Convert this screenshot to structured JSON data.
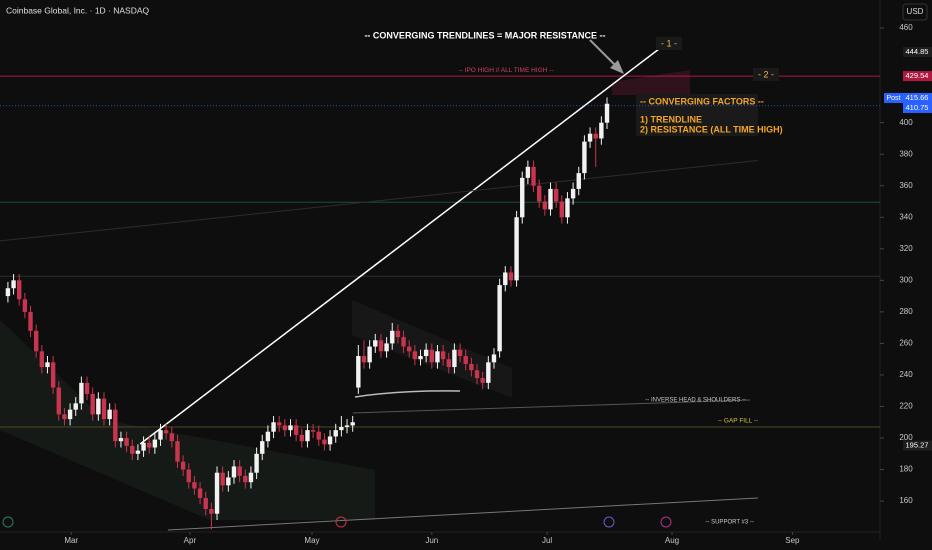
{
  "chart_data": {
    "type": "candlestick",
    "title": "Coinbase Global, Inc. · 1D · NASDAQ",
    "currency": "USD",
    "categories": [
      null,
      null,
      null,
      null,
      null,
      null,
      null,
      null,
      null,
      null,
      null,
      null,
      null,
      null,
      null,
      null,
      null,
      null,
      null,
      null,
      null,
      null,
      null,
      null,
      null,
      null,
      null,
      null,
      null,
      null,
      null,
      null,
      null,
      null,
      null,
      null,
      null,
      null,
      null,
      null,
      null,
      null,
      null,
      null,
      null,
      null,
      null,
      null,
      null,
      null,
      null,
      null,
      null,
      null,
      null,
      null,
      null,
      null,
      null,
      null,
      null,
      null,
      null,
      null,
      null,
      null,
      null,
      null,
      null,
      null,
      null,
      null,
      null,
      null,
      null,
      null,
      null,
      null,
      null,
      null,
      null,
      null,
      null,
      null,
      null,
      null,
      null,
      null,
      null,
      null,
      null,
      null,
      null,
      null,
      null,
      null,
      null,
      null,
      null,
      null,
      null,
      null,
      null,
      null,
      null,
      null,
      null
    ],
    "open": [
      290,
      295,
      300,
      288,
      280,
      268,
      255,
      245,
      248,
      232,
      215,
      212,
      218,
      222,
      235,
      228,
      215,
      225,
      212,
      218,
      198,
      200,
      195,
      190,
      192,
      197,
      194,
      199,
      205,
      203,
      198,
      185,
      180,
      172,
      168,
      162,
      155,
      152,
      178,
      170,
      175,
      182,
      176,
      172,
      178,
      190,
      198,
      204,
      210,
      208,
      205,
      208,
      202,
      198,
      205,
      204,
      199,
      196,
      201,
      205,
      207,
      208,
      232,
      252,
      248,
      258,
      262,
      255,
      260,
      268,
      264,
      258,
      255,
      250,
      252,
      256,
      248,
      255,
      250,
      245,
      256,
      252,
      247,
      243,
      238,
      235,
      248,
      255,
      297,
      305,
      300,
      340,
      365,
      372,
      360,
      350,
      345,
      358,
      350,
      340,
      352,
      358,
      368,
      388,
      393,
      390,
      400
    ],
    "high": [
      299,
      304,
      304,
      292,
      284,
      272,
      259,
      252,
      252,
      236,
      219,
      222,
      226,
      239,
      239,
      232,
      229,
      229,
      222,
      222,
      204,
      204,
      199,
      196,
      201,
      201,
      203,
      209,
      209,
      207,
      202,
      189,
      184,
      176,
      172,
      166,
      159,
      182,
      182,
      179,
      186,
      186,
      180,
      182,
      194,
      202,
      208,
      214,
      214,
      212,
      212,
      212,
      206,
      209,
      209,
      208,
      203,
      205,
      209,
      214,
      212,
      214,
      259,
      262,
      262,
      266,
      266,
      264,
      273,
      272,
      268,
      262,
      259,
      256,
      260,
      260,
      259,
      259,
      254,
      260,
      260,
      256,
      251,
      247,
      242,
      252,
      257,
      301,
      309,
      309,
      344,
      369,
      376,
      376,
      364,
      354,
      362,
      362,
      354,
      356,
      362,
      372,
      392,
      397,
      397,
      404,
      416
    ],
    "low": [
      286,
      291,
      284,
      276,
      264,
      251,
      241,
      241,
      228,
      211,
      208,
      208,
      214,
      218,
      224,
      211,
      211,
      208,
      208,
      194,
      194,
      191,
      186,
      186,
      188,
      190,
      190,
      195,
      199,
      194,
      181,
      176,
      168,
      164,
      158,
      151,
      142,
      148,
      166,
      166,
      171,
      172,
      168,
      168,
      174,
      186,
      194,
      200,
      204,
      201,
      201,
      198,
      194,
      194,
      200,
      195,
      192,
      192,
      197,
      201,
      203,
      204,
      228,
      244,
      244,
      254,
      251,
      251,
      256,
      260,
      254,
      251,
      246,
      246,
      248,
      244,
      244,
      246,
      241,
      241,
      248,
      243,
      239,
      234,
      231,
      231,
      244,
      251,
      293,
      296,
      296,
      336,
      361,
      356,
      346,
      341,
      341,
      346,
      336,
      336,
      348,
      354,
      364,
      384,
      372,
      386,
      396
    ],
    "close": [
      295,
      300,
      288,
      280,
      268,
      255,
      245,
      248,
      232,
      215,
      212,
      218,
      222,
      235,
      228,
      215,
      225,
      212,
      218,
      198,
      200,
      195,
      190,
      192,
      197,
      194,
      199,
      205,
      203,
      198,
      185,
      180,
      172,
      168,
      162,
      155,
      152,
      178,
      170,
      175,
      182,
      176,
      172,
      178,
      190,
      198,
      204,
      210,
      208,
      205,
      208,
      202,
      198,
      205,
      204,
      199,
      196,
      201,
      205,
      207,
      208,
      210,
      252,
      248,
      258,
      262,
      255,
      260,
      268,
      264,
      258,
      255,
      250,
      252,
      256,
      248,
      255,
      250,
      245,
      256,
      252,
      247,
      243,
      238,
      235,
      248,
      253,
      297,
      305,
      300,
      340,
      365,
      372,
      360,
      350,
      345,
      358,
      350,
      340,
      352,
      358,
      368,
      388,
      393,
      390,
      400,
      412
    ],
    "up_color": "#f2f2f2",
    "down_color": "#c9344e",
    "xlim": [
      -1.4,
      154.3
    ],
    "xticks": [
      {
        "value": 11.2,
        "label": "Mar"
      },
      {
        "value": 32.2,
        "label": "Apr"
      },
      {
        "value": 53.8,
        "label": "May"
      },
      {
        "value": 75,
        "label": "Jun"
      },
      {
        "value": 95.4,
        "label": "Jul"
      },
      {
        "value": 117.5,
        "label": "Aug"
      },
      {
        "value": 138.8,
        "label": "Sep"
      }
    ],
    "ylim": [
      140.4,
      477.8
    ],
    "yticks": [
      160,
      180,
      200,
      220,
      240,
      260,
      280,
      300,
      320,
      340,
      360,
      380,
      400,
      460
    ],
    "levels": [
      {
        "value": 429.54,
        "color": "#b0193f",
        "label": "-- IPO HIGH  //  ALL TIME HIGH --"
      },
      {
        "value": 349.5,
        "color": "#1d4d33"
      },
      {
        "value": 302.6,
        "color": "#2a2f2c"
      },
      {
        "value": 207,
        "color": "#4a4a22",
        "label": "-- GAP FILL --"
      }
    ],
    "trendlines": [
      {
        "x": [
          23.4,
          115.4
        ],
        "y": [
          196.2,
          447.3
        ],
        "color": "#ffffff"
      },
      {
        "x": [
          28.3,
          132.7
        ],
        "y": [
          141.7,
          162
        ],
        "color": "#777777",
        "label": "-- SUPPORT #3 --"
      },
      {
        "x": [
          61,
          131.3
        ],
        "y": [
          215.9,
          224.1
        ],
        "color": "#555555",
        "label": "-- INVERSE HEAD & SHOULDERS --"
      },
      {
        "x": [
          -1.4,
          132.7
        ],
        "y": [
          325,
          376
        ],
        "color": "#2c2c2c"
      }
    ],
    "price_labels": [
      {
        "value": 444.85,
        "color": "#1e1e1e"
      },
      {
        "value": 429.54,
        "color": "#b0193f"
      },
      {
        "value": 415.66,
        "color": "#2962ff",
        "tag": "Post"
      },
      {
        "value": 410.75,
        "color": "#2962ff"
      },
      {
        "value": 195.27,
        "color": "#1e1e1e"
      }
    ],
    "annotations": [
      "-- CONVERGING TRENDLINES = MAJOR RESISTANCE --",
      "- 1 -",
      "- 2 -",
      "-- CONVERGING FACTORS --",
      "1) TRENDLINE",
      "2) RESISTANCE (ALL TIME HIGH)"
    ]
  }
}
